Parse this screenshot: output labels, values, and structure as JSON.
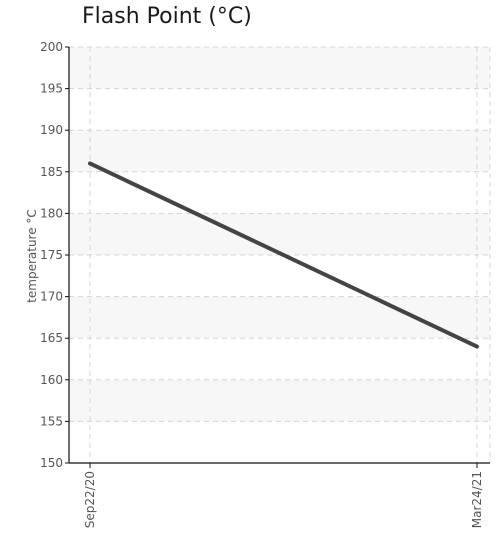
{
  "chart_data": {
    "type": "line",
    "title": "Flash Point (°C)",
    "xlabel": "",
    "ylabel": "temperature °C",
    "ylim": [
      150,
      200
    ],
    "yticks": [
      150,
      155,
      160,
      165,
      170,
      175,
      180,
      185,
      190,
      195,
      200
    ],
    "categories": [
      "Sep22/20",
      "Mar24/21"
    ],
    "series": [
      {
        "values": [
          186,
          164
        ]
      }
    ],
    "grid": true,
    "colors": {
      "line": "#444444",
      "band": "#f7f7f7",
      "grid": "#d4d4d4",
      "axis": "#111111"
    }
  }
}
